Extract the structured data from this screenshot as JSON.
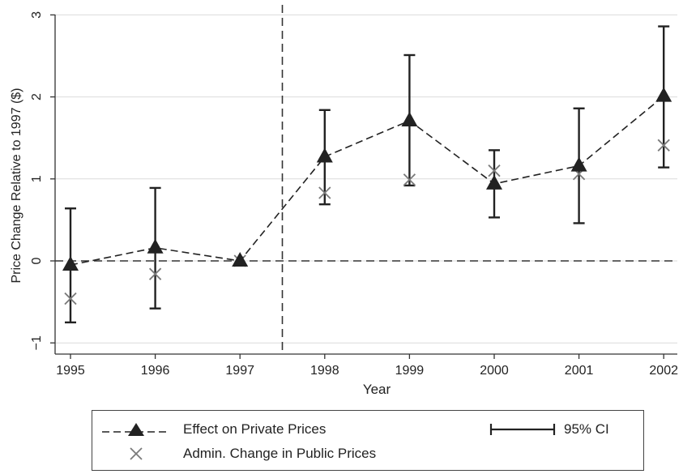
{
  "chart_data": {
    "type": "line",
    "xlabel": "Year",
    "ylabel": "Price Change Relative to 1997 ($)",
    "x": [
      "1995",
      "1996",
      "1997",
      "1998",
      "1999",
      "2000",
      "2001",
      "2002"
    ],
    "ylim": [
      -1.05,
      3.05
    ],
    "yticks": [
      "−1",
      "0",
      "1",
      "2",
      "3"
    ],
    "yticks_values": [
      -1,
      0,
      1,
      2,
      3
    ],
    "grid": "horizontal",
    "reference_lines": {
      "horizontal_y": 0,
      "vertical_between": [
        "1997",
        "1998"
      ]
    },
    "series": [
      {
        "name": "Effect on Private Prices",
        "values": [
          -0.05,
          0.16,
          0.0,
          1.27,
          1.71,
          0.94,
          1.16,
          2.01
        ],
        "ci_low": [
          -0.75,
          -0.58,
          0.0,
          0.69,
          0.92,
          0.53,
          0.46,
          1.14
        ],
        "ci_high": [
          0.64,
          0.89,
          0.0,
          1.84,
          2.51,
          1.35,
          1.86,
          2.86
        ],
        "color": "#222222",
        "line_style": "dashed",
        "marker": "triangle"
      },
      {
        "name": "Admin. Change in Public Prices",
        "values": [
          -0.46,
          -0.16,
          0.0,
          0.83,
          0.99,
          1.1,
          1.06,
          1.41
        ],
        "color": "#7a7a7a",
        "marker": "x"
      }
    ],
    "ci_label": "95% CI"
  },
  "legend": {
    "private_label": "Effect on Private Prices",
    "ci_label": "95% CI",
    "public_label": "Admin. Change in Public Prices"
  }
}
